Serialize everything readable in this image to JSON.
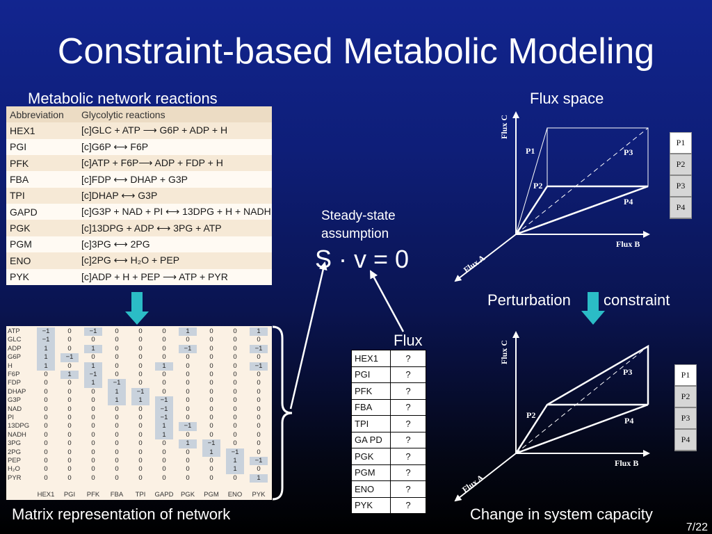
{
  "title": "Constraint-based Metabolic Modeling",
  "labels": {
    "network": "Metabolic network reactions",
    "flux_space": "Flux space",
    "steady_state_1": "Steady-state",
    "steady_state_2": "assumption",
    "equation": "S · v = 0",
    "flux": "Flux",
    "perturbation": "Perturbation",
    "constraint": "constraint",
    "matrix": "Matrix representation of network",
    "change": "Change in system capacity",
    "page": "7/22"
  },
  "reactions": {
    "headers": [
      "Abbreviation",
      "Glycolytic reactions"
    ],
    "rows": [
      {
        "abbr": "HEX1",
        "rxn": "[c]GLC + ATP ⟶ G6P + ADP + H"
      },
      {
        "abbr": "PGI",
        "rxn": "[c]G6P ⟷ F6P"
      },
      {
        "abbr": "PFK",
        "rxn": "[c]ATP + F6P⟶ ADP + FDP + H"
      },
      {
        "abbr": "FBA",
        "rxn": "[c]FDP ⟷ DHAP + G3P"
      },
      {
        "abbr": "TPI",
        "rxn": "[c]DHAP ⟷ G3P"
      },
      {
        "abbr": "GAPD",
        "rxn": "[c]G3P + NAD + PI ⟷ 13DPG + H + NADH"
      },
      {
        "abbr": "PGK",
        "rxn": "[c]13DPG + ADP ⟷ 3PG + ATP"
      },
      {
        "abbr": "PGM",
        "rxn": "[c]3PG ⟷ 2PG"
      },
      {
        "abbr": "ENO",
        "rxn": "[c]2PG ⟷ H₂O + PEP"
      },
      {
        "abbr": "PYK",
        "rxn": "[c]ADP + H + PEP ⟶ ATP + PYR"
      }
    ]
  },
  "matrix": {
    "metabolites": [
      "ATP",
      "GLC",
      "ADP",
      "G6P",
      "H",
      "F6P",
      "FDP",
      "DHAP",
      "G3P",
      "NAD",
      "PI",
      "13DPG",
      "NADH",
      "3PG",
      "2PG",
      "PEP",
      "H₂O",
      "PYR"
    ],
    "reactions": [
      "HEX1",
      "PGI",
      "PFK",
      "FBA",
      "TPI",
      "GAPD",
      "PGK",
      "PGM",
      "ENO",
      "PYK"
    ],
    "values": [
      [
        -1,
        0,
        -1,
        0,
        0,
        0,
        1,
        0,
        0,
        1
      ],
      [
        -1,
        0,
        0,
        0,
        0,
        0,
        0,
        0,
        0,
        0
      ],
      [
        1,
        0,
        1,
        0,
        0,
        0,
        -1,
        0,
        0,
        -1
      ],
      [
        1,
        -1,
        0,
        0,
        0,
        0,
        0,
        0,
        0,
        0
      ],
      [
        1,
        0,
        1,
        0,
        0,
        1,
        0,
        0,
        0,
        -1
      ],
      [
        0,
        1,
        -1,
        0,
        0,
        0,
        0,
        0,
        0,
        0
      ],
      [
        0,
        0,
        1,
        -1,
        0,
        0,
        0,
        0,
        0,
        0
      ],
      [
        0,
        0,
        0,
        1,
        -1,
        0,
        0,
        0,
        0,
        0
      ],
      [
        0,
        0,
        0,
        1,
        1,
        -1,
        0,
        0,
        0,
        0
      ],
      [
        0,
        0,
        0,
        0,
        0,
        -1,
        0,
        0,
        0,
        0
      ],
      [
        0,
        0,
        0,
        0,
        0,
        -1,
        0,
        0,
        0,
        0
      ],
      [
        0,
        0,
        0,
        0,
        0,
        1,
        -1,
        0,
        0,
        0
      ],
      [
        0,
        0,
        0,
        0,
        0,
        1,
        0,
        0,
        0,
        0
      ],
      [
        0,
        0,
        0,
        0,
        0,
        0,
        1,
        -1,
        0,
        0
      ],
      [
        0,
        0,
        0,
        0,
        0,
        0,
        0,
        1,
        -1,
        0
      ],
      [
        0,
        0,
        0,
        0,
        0,
        0,
        0,
        0,
        1,
        -1
      ],
      [
        0,
        0,
        0,
        0,
        0,
        0,
        0,
        0,
        1,
        0
      ],
      [
        0,
        0,
        0,
        0,
        0,
        0,
        0,
        0,
        0,
        1
      ]
    ]
  },
  "flux_table": [
    {
      "name": "HEX1",
      "value": "?"
    },
    {
      "name": "PGI",
      "value": "?"
    },
    {
      "name": "PFK",
      "value": "?"
    },
    {
      "name": "FBA",
      "value": "?"
    },
    {
      "name": "TPI",
      "value": "?"
    },
    {
      "name": "GA PD",
      "value": "?"
    },
    {
      "name": "PGK",
      "value": "?"
    },
    {
      "name": "PGM",
      "value": "?"
    },
    {
      "name": "ENO",
      "value": "?"
    },
    {
      "name": "PYK",
      "value": "?"
    }
  ],
  "axes": {
    "a": "Flux A",
    "b": "Flux B",
    "c": "Flux C"
  },
  "points": [
    "P1",
    "P2",
    "P3",
    "P4"
  ],
  "colors": {
    "arrow": "#2bbcc6",
    "highlight": "#c9d2dc"
  }
}
